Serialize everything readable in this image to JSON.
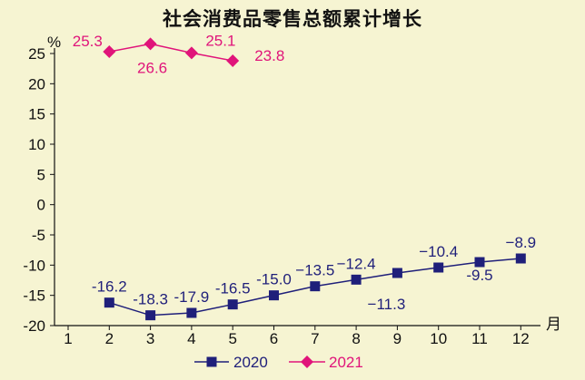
{
  "chart_data": {
    "type": "line",
    "title": "社会消费品零售总额累计增长",
    "y_unit": "%",
    "x_unit": "月",
    "xlim": [
      1,
      12
    ],
    "ylim": [
      -20,
      25
    ],
    "x_ticks": [
      "1",
      "2",
      "3",
      "4",
      "5",
      "6",
      "7",
      "8",
      "9",
      "10",
      "11",
      "12"
    ],
    "y_ticks": [
      "25",
      "20",
      "15",
      "10",
      "5",
      "0",
      "-5",
      "-10",
      "-15",
      "-20"
    ],
    "grid": false,
    "legend_position": "bottom",
    "series": [
      {
        "name": "2020",
        "color": "#1f1f7a",
        "marker": "square",
        "x": [
          2,
          3,
          4,
          5,
          6,
          7,
          8,
          9,
          10,
          11,
          12
        ],
        "values": [
          -16.2,
          -18.3,
          -17.9,
          -16.5,
          -15.0,
          -13.5,
          -12.4,
          -11.3,
          -10.4,
          -9.5,
          -8.9
        ],
        "labels": [
          "-16.2",
          "-18.3",
          "-17.9",
          "-16.5",
          "-15.0",
          "−13.5",
          "−12.4",
          "−11.3",
          "−10.4",
          "-9.5",
          "−8.9"
        ]
      },
      {
        "name": "2021",
        "color": "#e0147a",
        "marker": "diamond",
        "x": [
          2,
          3,
          4,
          5
        ],
        "values": [
          25.3,
          26.6,
          25.1,
          23.8
        ],
        "labels": [
          "25.3",
          "26.6",
          "25.1",
          "23.8"
        ]
      }
    ]
  }
}
